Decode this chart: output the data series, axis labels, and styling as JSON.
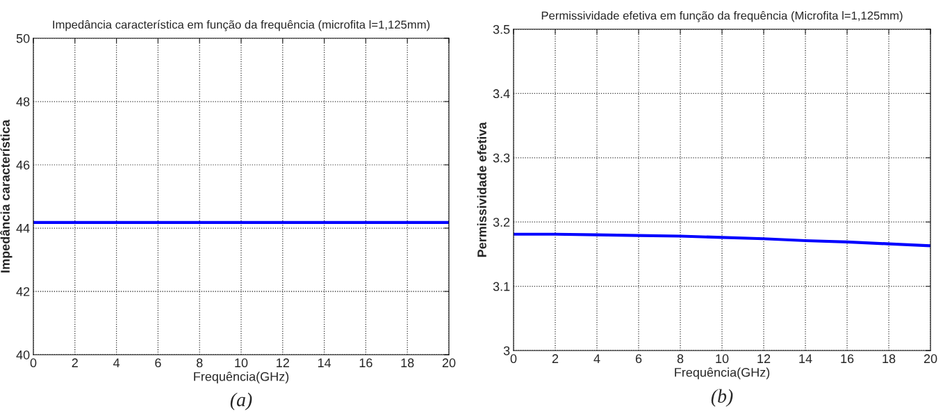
{
  "chart_data": [
    {
      "type": "line",
      "title": "Impedância característica em função da frequência (microfita l=1,125mm)",
      "xlabel": "Frequência(GHz)",
      "ylabel": "Impedância característica",
      "annotations": [
        "(a)"
      ],
      "x": [
        0,
        20
      ],
      "series": [
        {
          "color": "#0000ff",
          "values": [
            44.18,
            44.18
          ]
        }
      ],
      "xlim": [
        0,
        20
      ],
      "xticks": [
        0,
        2,
        4,
        6,
        8,
        10,
        12,
        14,
        16,
        18,
        20
      ],
      "ylim": [
        40,
        50
      ],
      "yticks": [
        40,
        42,
        44,
        46,
        48,
        50
      ],
      "grid": true,
      "line_style": "solid"
    },
    {
      "type": "line",
      "title": "Permissividade efetiva em função da frequência (Microfita l=1,125mm)",
      "xlabel": "Frequência(GHz)",
      "ylabel": "Permissividade efetiva",
      "annotations": [
        "(b)"
      ],
      "x": [
        0,
        2,
        4,
        6,
        8,
        10,
        12,
        14,
        16,
        18,
        20
      ],
      "series": [
        {
          "color": "#0000ff",
          "values": [
            3.181,
            3.181,
            3.18,
            3.179,
            3.178,
            3.176,
            3.174,
            3.171,
            3.169,
            3.166,
            3.163
          ]
        }
      ],
      "xlim": [
        0,
        20
      ],
      "xticks": [
        0,
        2,
        4,
        6,
        8,
        10,
        12,
        14,
        16,
        18,
        20
      ],
      "ylim": [
        3,
        3.5
      ],
      "yticks": [
        3,
        3.1,
        3.2,
        3.3,
        3.4,
        3.5
      ],
      "grid": true,
      "line_style": "solid"
    }
  ]
}
